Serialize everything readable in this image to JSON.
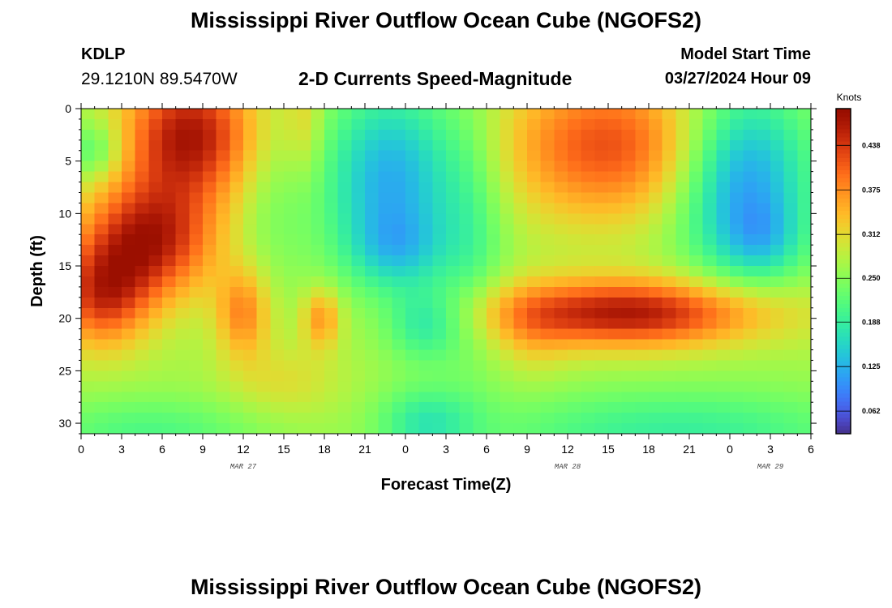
{
  "header": {
    "title_top": "Mississippi River Outflow Ocean Cube (NGOFS2)",
    "title_bottom": "Mississippi River Outflow Ocean Cube (NGOFS2)",
    "station_id": "KDLP",
    "station_coords": "29.1210N  89.5470W",
    "model_start_label": "Model Start Time",
    "model_start_time": "03/27/2024 Hour 09"
  },
  "chart_data": {
    "type": "heatmap",
    "title": "2-D Currents Speed-Magnitude",
    "xlabel": "Forecast Time(Z)",
    "ylabel": "Depth (ft)",
    "x_unit": "hours since Mar 27 00Z",
    "xlim": [
      0,
      54
    ],
    "ylim": [
      0,
      31
    ],
    "y_inverted": true,
    "x_ticks": [
      0,
      3,
      6,
      9,
      12,
      15,
      18,
      21,
      24,
      27,
      30,
      33,
      36,
      39,
      42,
      45,
      48,
      51,
      54
    ],
    "x_tick_labels": [
      "0",
      "3",
      "6",
      "9",
      "12",
      "15",
      "18",
      "21",
      "0",
      "3",
      "6",
      "9",
      "12",
      "15",
      "18",
      "21",
      "0",
      "3",
      "6"
    ],
    "y_ticks": [
      0,
      5,
      10,
      15,
      20,
      25,
      30
    ],
    "y_tick_labels": [
      "0",
      "5",
      "10",
      "15",
      "20",
      "25",
      "30"
    ],
    "date_labels": [
      {
        "x": 12,
        "label": "MAR 27"
      },
      {
        "x": 36,
        "label": "MAR 28"
      },
      {
        "x": 51,
        "label": "MAR 29"
      }
    ],
    "colorbar": {
      "units": "Knots",
      "range": [
        0.03,
        0.49
      ],
      "ticks": [
        0.062,
        0.125,
        0.188,
        0.25,
        0.312,
        0.375,
        0.438
      ],
      "tick_labels": [
        "0.062",
        "0.125",
        "0.188",
        "0.250",
        "0.312",
        "0.375",
        "0.438"
      ],
      "colormap": "turbo"
    },
    "cells": {
      "x_step": 1,
      "y_step": 1,
      "depth_rows": [
        0.5,
        1.5,
        2.5,
        3.5,
        4.5,
        5.5,
        6.5,
        7.5,
        8.5,
        9.5,
        10.5,
        11.5,
        12.5,
        13.5,
        14.5,
        15.5,
        16.5,
        17.5,
        18.5,
        19.5,
        20.5,
        21.5,
        22.5,
        23.5,
        24.5,
        25.5,
        26.5,
        27.5,
        28.5,
        29.5,
        30.5
      ],
      "time_cols": [
        0.5,
        1.5,
        2.5,
        3.5,
        4.5,
        5.5,
        6.5,
        7.5,
        8.5,
        9.5,
        10.5,
        11.5,
        12.5,
        13.5,
        14.5,
        15.5,
        16.5,
        17.5,
        18.5,
        19.5,
        20.5,
        21.5,
        22.5,
        23.5,
        24.5,
        25.5,
        26.5,
        27.5,
        28.5,
        29.5,
        30.5,
        31.5,
        32.5,
        33.5,
        34.5,
        35.5,
        36.5,
        37.5,
        38.5,
        39.5,
        40.5,
        41.5,
        42.5,
        43.5,
        44.5,
        45.5,
        46.5,
        47.5,
        48.5,
        49.5,
        50.5,
        51.5,
        52.5,
        53.5
      ],
      "model": "approximated speed field reconstructed from color features",
      "base_speed": 0.27,
      "features": [
        {
          "t": 8,
          "d": 2.5,
          "st": 3.5,
          "sd": 4.5,
          "amp": 0.2
        },
        {
          "t": 5,
          "d": 12.5,
          "st": 3.5,
          "sd": 4.0,
          "amp": 0.19
        },
        {
          "t": 1.5,
          "d": 18.0,
          "st": 2.5,
          "sd": 3.5,
          "amp": 0.15
        },
        {
          "t": 1,
          "d": 4,
          "st": 1.5,
          "sd": 2.0,
          "amp": -0.07
        },
        {
          "t": 12,
          "d": 19.5,
          "st": 1.4,
          "sd": 3.0,
          "amp": 0.11
        },
        {
          "t": 17.8,
          "d": 20.0,
          "st": 1.0,
          "sd": 2.0,
          "amp": 0.1
        },
        {
          "t": 14,
          "d": 9.0,
          "st": 2.0,
          "sd": 6.0,
          "amp": -0.03
        },
        {
          "t": 23,
          "d": 7.0,
          "st": 3.5,
          "sd": 6.5,
          "amp": -0.15
        },
        {
          "t": 23.5,
          "d": 13.5,
          "st": 2.5,
          "sd": 2.5,
          "amp": -0.06
        },
        {
          "t": 25.5,
          "d": 20.5,
          "st": 2.0,
          "sd": 2.5,
          "amp": -0.09
        },
        {
          "t": 25.5,
          "d": 30.0,
          "st": 2.5,
          "sd": 2.5,
          "amp": -0.08
        },
        {
          "t": 29,
          "d": 12.0,
          "st": 1.8,
          "sd": 9.0,
          "amp": -0.05
        },
        {
          "t": 16.5,
          "d": 1.0,
          "st": 1.0,
          "sd": 4.0,
          "amp": 0.05
        },
        {
          "t": 39,
          "d": 3.5,
          "st": 5.5,
          "sd": 5.0,
          "amp": 0.15
        },
        {
          "t": 40.5,
          "d": 19.5,
          "st": 7.5,
          "sd": 2.3,
          "amp": 0.2
        },
        {
          "t": 33.5,
          "d": 22.0,
          "st": 2.0,
          "sd": 3.0,
          "amp": 0.03
        },
        {
          "t": 49,
          "d": 7.0,
          "st": 3.5,
          "sd": 6.5,
          "amp": -0.17
        },
        {
          "t": 50.5,
          "d": 12.5,
          "st": 2.0,
          "sd": 2.5,
          "amp": -0.05
        },
        {
          "t": 44,
          "d": 31.0,
          "st": 10.0,
          "sd": 3.0,
          "amp": -0.08
        },
        {
          "t": 5,
          "d": 31.0,
          "st": 6.0,
          "sd": 2.5,
          "amp": -0.06
        },
        {
          "t": 15,
          "d": 26.0,
          "st": 3.0,
          "sd": 2.5,
          "amp": 0.04
        }
      ]
    }
  }
}
